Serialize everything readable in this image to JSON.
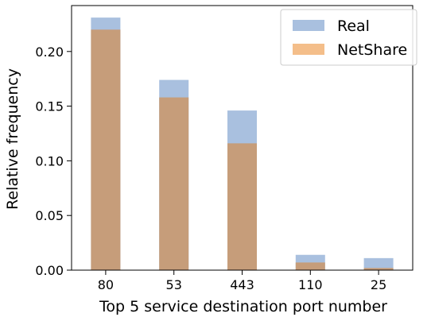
{
  "chart_data": {
    "type": "bar",
    "title": "",
    "xlabel": "Top 5 service destination port number",
    "ylabel": "Relative frequency",
    "categories": [
      "80",
      "53",
      "443",
      "110",
      "25"
    ],
    "series": [
      {
        "name": "Real",
        "color": "#a9c0df",
        "values": [
          0.231,
          0.174,
          0.146,
          0.014,
          0.011
        ]
      },
      {
        "name": "NetShare",
        "color": "#f4be8a",
        "values": [
          0.22,
          0.158,
          0.116,
          0.007,
          0.002
        ]
      }
    ],
    "overlap_color": "#c69d7a",
    "ylim": [
      0,
      0.242
    ],
    "yticks": [
      "0.00",
      "0.05",
      "0.10",
      "0.15",
      "0.20"
    ],
    "legend_position": "top-right",
    "grid": false
  }
}
